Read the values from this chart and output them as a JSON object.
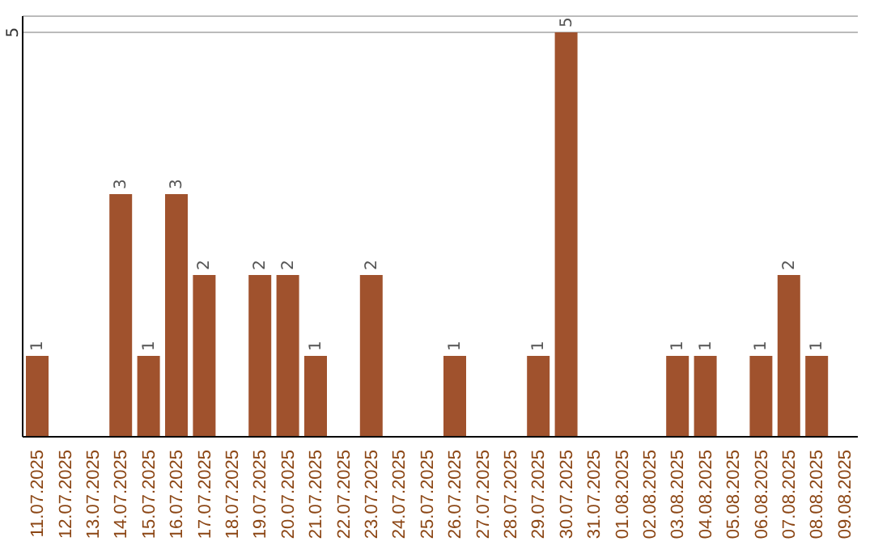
{
  "chart_data": {
    "type": "bar",
    "categories": [
      "11.07.2025",
      "12.07.2025",
      "13.07.2025",
      "14.07.2025",
      "15.07.2025",
      "16.07.2025",
      "17.07.2025",
      "18.07.2025",
      "19.07.2025",
      "20.07.2025",
      "21.07.2025",
      "22.07.2025",
      "23.07.2025",
      "24.07.2025",
      "25.07.2025",
      "26.07.2025",
      "27.07.2025",
      "28.07.2025",
      "29.07.2025",
      "30.07.2025",
      "31.07.2025",
      "01.08.2025",
      "02.08.2025",
      "03.08.2025",
      "04.08.2025",
      "05.08.2025",
      "06.08.2025",
      "07.08.2025",
      "08.08.2025",
      "09.08.2025"
    ],
    "values": [
      1,
      0,
      0,
      3,
      1,
      3,
      2,
      0,
      2,
      2,
      1,
      0,
      2,
      0,
      0,
      1,
      0,
      0,
      1,
      5,
      0,
      0,
      0,
      1,
      1,
      0,
      1,
      2,
      1,
      0
    ],
    "value_labels": [
      "1",
      null,
      null,
      "3",
      "1",
      "3",
      "2",
      null,
      "2",
      "2",
      "1",
      null,
      "2",
      null,
      null,
      "1",
      null,
      null,
      "1",
      "5",
      null,
      null,
      null,
      "1",
      "1",
      null,
      "1",
      "2",
      "1",
      null
    ],
    "color": "#a0522d",
    "ylim": [
      0,
      5.2
    ],
    "yticks": [
      5
    ],
    "grid": "y"
  }
}
